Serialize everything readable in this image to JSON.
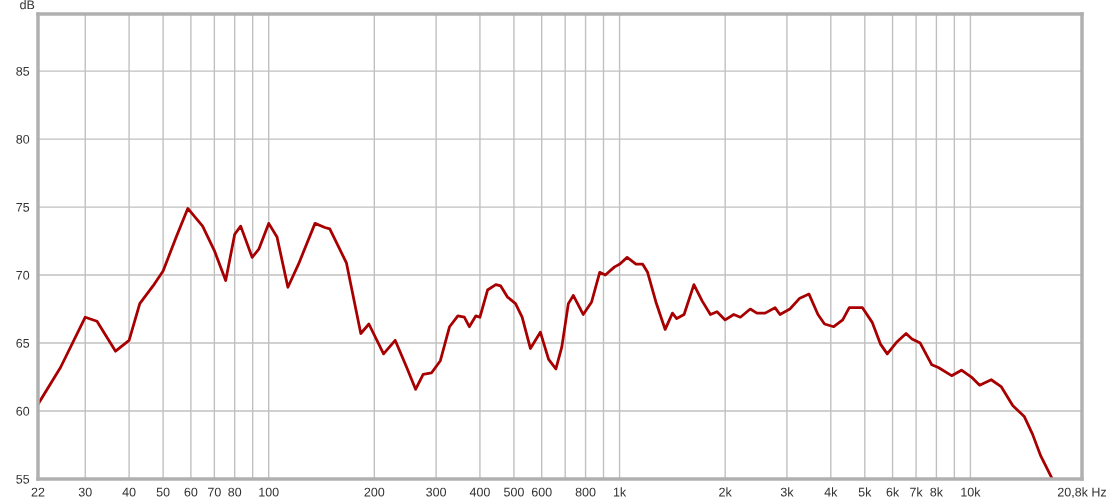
{
  "chart_data": {
    "type": "line",
    "ylabel": "dB",
    "x": [
      22,
      25.5,
      30,
      32.4,
      36.6,
      40,
      42.9,
      46.8,
      50,
      54.5,
      58.8,
      64.8,
      70,
      75.4,
      80,
      83.2,
      89.7,
      93.7,
      100,
      105.6,
      113.4,
      121.6,
      135.5,
      144.6,
      149.3,
      166.5,
      183,
      193,
      212.5,
      229.3,
      247.4,
      262.2,
      275.5,
      290.9,
      308.5,
      327.7,
      346,
      361,
      373,
      389.6,
      400,
      420.5,
      443.8,
      458.4,
      478.7,
      505.2,
      527.6,
      557,
      594.6,
      627.8,
      658.4,
      684.4,
      714.6,
      738.2,
      787.6,
      831.8,
      877.9,
      910.8,
      967.7,
      1000,
      1051,
      1114,
      1164,
      1202,
      1270,
      1349,
      1415,
      1455,
      1527,
      1629,
      1719,
      1815,
      1896,
      2000,
      2116,
      2210,
      2358,
      2463,
      2600,
      2774,
      2866,
      3058,
      3264,
      3467,
      3677,
      3839,
      4079,
      4325,
      4516,
      4924,
      5255,
      5548,
      5794,
      6182,
      6556,
      6816,
      7194,
      7762,
      8104,
      8840,
      9432,
      10065,
      10625,
      11463,
      12232,
      13199,
      14236,
      15030,
      15866,
      17118
    ],
    "series": [
      {
        "color": "#a80000",
        "values": [
          60.5,
          63.2,
          66.9,
          66.6,
          64.4,
          65.2,
          67.9,
          69.2,
          70.3,
          72.8,
          74.9,
          73.6,
          71.8,
          69.6,
          73.0,
          73.6,
          71.3,
          71.9,
          73.8,
          72.8,
          69.1,
          70.8,
          73.8,
          73.5,
          73.4,
          70.9,
          65.7,
          66.4,
          64.2,
          65.2,
          63.2,
          61.6,
          62.7,
          62.8,
          63.7,
          66.2,
          67.0,
          66.9,
          66.2,
          67.0,
          66.9,
          68.9,
          69.3,
          69.2,
          68.4,
          67.9,
          66.9,
          64.6,
          65.8,
          63.8,
          63.1,
          64.7,
          67.9,
          68.5,
          67.1,
          68.0,
          70.2,
          70.0,
          70.6,
          70.8,
          71.3,
          70.8,
          70.8,
          70.2,
          68.0,
          66.0,
          67.2,
          66.8,
          67.1,
          69.3,
          68.1,
          67.1,
          67.3,
          66.7,
          67.1,
          66.9,
          67.5,
          67.2,
          67.2,
          67.6,
          67.1,
          67.5,
          68.3,
          68.6,
          67.1,
          66.4,
          66.2,
          66.7,
          67.6,
          67.6,
          66.5,
          64.9,
          64.2,
          65.1,
          65.7,
          65.3,
          65.0,
          63.4,
          63.2,
          62.6,
          63.0,
          62.5,
          61.9,
          62.3,
          61.8,
          60.4,
          59.6,
          58.3,
          56.7,
          55.0
        ]
      }
    ],
    "log": "x",
    "xlim": [
      22,
      20800
    ],
    "ylim": [
      55,
      89.2
    ],
    "xticks": [
      22,
      30,
      40,
      50,
      60,
      70,
      80,
      {
        "value": 90,
        "label": null
      },
      100,
      200,
      300,
      400,
      500,
      600,
      {
        "value": 700,
        "label": null
      },
      800,
      {
        "value": 900,
        "label": null
      },
      {
        "value": 1000,
        "label": "1k"
      },
      {
        "value": 2000,
        "label": "2k"
      },
      {
        "value": 3000,
        "label": "3k"
      },
      {
        "value": 4000,
        "label": "4k"
      },
      {
        "value": 5000,
        "label": "5k"
      },
      {
        "value": 6000,
        "label": "6k"
      },
      {
        "value": 7000,
        "label": "7k"
      },
      {
        "value": 8000,
        "label": "8k"
      },
      {
        "value": 9000,
        "label": null
      },
      {
        "value": 10000,
        "label": "10k"
      },
      {
        "value": 20800,
        "label": "20,8k Hz"
      }
    ],
    "yticks": [
      55,
      60,
      65,
      70,
      75,
      80,
      85
    ],
    "grid": true,
    "legend": false,
    "marker": "none",
    "line_style": "solid"
  }
}
